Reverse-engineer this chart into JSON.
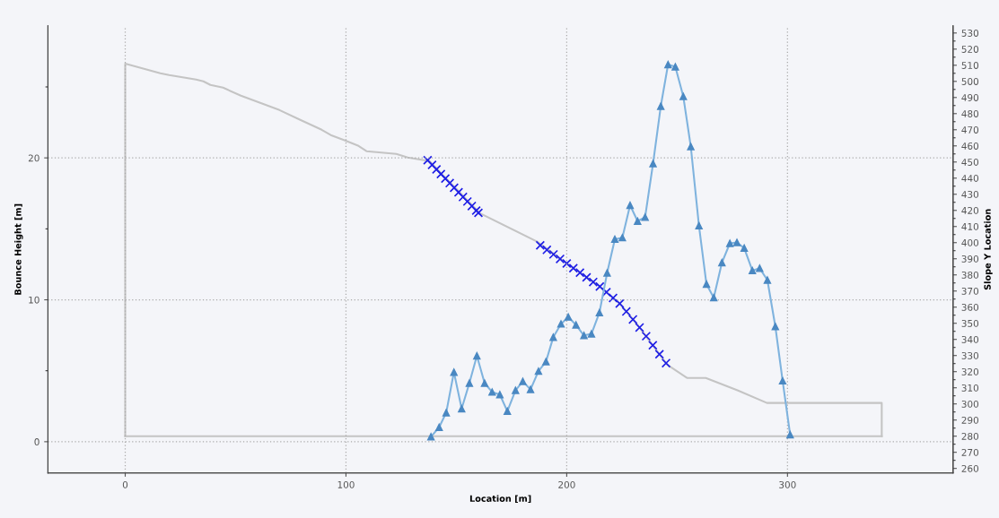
{
  "chart_data": {
    "type": "line",
    "xlabel": "Location [m]",
    "ylabel": "Bounce Height [m]",
    "y2label": "Slope Y Location",
    "xlim": [
      -35,
      375
    ],
    "xticks": [
      0,
      100,
      200,
      300
    ],
    "ylim": [
      -2.2,
      29.3
    ],
    "yticks": [
      0,
      10,
      20,
      {
        "value": 5,
        "label": null
      },
      {
        "value": 15,
        "label": null
      },
      {
        "value": 25,
        "label": null
      }
    ],
    "y2lim": [
      257.2,
      534.4
    ],
    "y2ticks": [
      260,
      270,
      280,
      290,
      300,
      310,
      320,
      330,
      340,
      350,
      360,
      370,
      380,
      390,
      400,
      410,
      420,
      430,
      440,
      450,
      460,
      470,
      480,
      490,
      500,
      510,
      520,
      530,
      {
        "value": 265,
        "label": null
      },
      {
        "value": 275,
        "label": null
      },
      {
        "value": 285,
        "label": null
      },
      {
        "value": 295,
        "label": null
      },
      {
        "value": 305,
        "label": null
      },
      {
        "value": 315,
        "label": null
      },
      {
        "value": 325,
        "label": null
      },
      {
        "value": 335,
        "label": null
      },
      {
        "value": 345,
        "label": null
      },
      {
        "value": 355,
        "label": null
      },
      {
        "value": 365,
        "label": null
      },
      {
        "value": 375,
        "label": null
      },
      {
        "value": 385,
        "label": null
      },
      {
        "value": 395,
        "label": null
      },
      {
        "value": 405,
        "label": null
      },
      {
        "value": 415,
        "label": null
      },
      {
        "value": 425,
        "label": null
      },
      {
        "value": 435,
        "label": null
      },
      {
        "value": 445,
        "label": null
      },
      {
        "value": 455,
        "label": null
      },
      {
        "value": 465,
        "label": null
      },
      {
        "value": 475,
        "label": null
      },
      {
        "value": 485,
        "label": null
      },
      {
        "value": 495,
        "label": null
      },
      {
        "value": 505,
        "label": null
      },
      {
        "value": 515,
        "label": null
      },
      {
        "value": 525,
        "label": null
      }
    ],
    "grid": true,
    "series": [
      {
        "axis": "y2",
        "color": "#c4c4c4",
        "marker": "none",
        "line_style": "solid",
        "x": [
          0,
          342.7
        ],
        "values": [
          280,
          280
        ]
      },
      {
        "axis": "y2",
        "color": "#c4c4c4",
        "marker": "none",
        "line_style": "solid",
        "x": [
          0,
          0,
          15.9,
          19.9,
          32.1,
          35.4,
          38.6,
          44.3,
          52.4,
          69.9,
          79.3,
          89.0,
          93.1,
          99.6,
          105.7,
          109.3,
          122.8,
          128.0,
          137.8,
          160.6,
          186.6,
          200.4,
          215.0,
          224.0,
          232.5,
          245.5,
          254.5,
          263.0,
          277.6,
          290.7,
          342.7,
          342.7
        ],
        "values": [
          280,
          511,
          505,
          503.9,
          501.1,
          500,
          497.8,
          496.1,
          491.1,
          482.2,
          476.1,
          470,
          466.7,
          463.3,
          460,
          456.7,
          455,
          452.8,
          450.6,
          418.3,
          400.6,
          386.7,
          372.8,
          362.2,
          348.3,
          324.4,
          316.1,
          316.1,
          308.3,
          300.6,
          300.6,
          280
        ]
      },
      {
        "type": "scatter",
        "axis": "y2",
        "color": "#1f1fe6",
        "marker": "cross",
        "x": [
          137,
          139,
          141,
          143,
          145,
          147,
          149,
          151,
          153,
          155,
          157,
          159,
          160,
          188,
          191,
          194,
          197,
          200,
          203,
          206,
          209,
          212,
          215,
          218,
          221,
          224,
          227,
          230,
          233,
          236,
          239,
          242,
          245
        ],
        "values": [
          451.1,
          448.2,
          445.4,
          442.5,
          439.7,
          436.9,
          434.0,
          431.2,
          428.3,
          425.5,
          422.7,
          419.9,
          418.5,
          398.3,
          395.5,
          392.7,
          389.9,
          387.1,
          384.2,
          381.4,
          378.5,
          375.6,
          372.8,
          369.3,
          365.7,
          362.2,
          357.3,
          352.4,
          347.4,
          342.0,
          336.4,
          330.8,
          325.3
        ]
      },
      {
        "color": "#7fb3de",
        "marker": "triangle",
        "line_style": "solid",
        "x": [
          138.5,
          142.2,
          145.4,
          148.9,
          152.4,
          155.9,
          159.3,
          162.8,
          166.2,
          169.7,
          173.1,
          176.8,
          180.1,
          183.6,
          187.2,
          190.6,
          193.9,
          197.4,
          200.7,
          204.2,
          207.8,
          211.2,
          214.8,
          218.3,
          221.8,
          225.2,
          228.7,
          232.1,
          235.5,
          239.1,
          242.6,
          245.9,
          249.2,
          252.8,
          256.2,
          259.9,
          263.3,
          266.6,
          270.3,
          273.9,
          277.1,
          280.4,
          284.1,
          287.4,
          290.9,
          294.5,
          297.8,
          301.2
        ],
        "values": [
          0.35,
          1.02,
          2.04,
          4.9,
          2.33,
          4.13,
          6.05,
          4.13,
          3.5,
          3.32,
          2.15,
          3.62,
          4.25,
          3.68,
          4.97,
          5.64,
          7.36,
          8.3,
          8.79,
          8.23,
          7.49,
          7.6,
          9.09,
          11.89,
          14.27,
          14.38,
          16.66,
          15.54,
          15.82,
          19.6,
          23.64,
          26.58,
          26.42,
          24.33,
          20.8,
          15.22,
          11.1,
          10.15,
          12.62,
          13.98,
          14.04,
          13.64,
          12.06,
          12.22,
          11.39,
          8.12,
          4.29,
          0.5
        ]
      }
    ]
  }
}
